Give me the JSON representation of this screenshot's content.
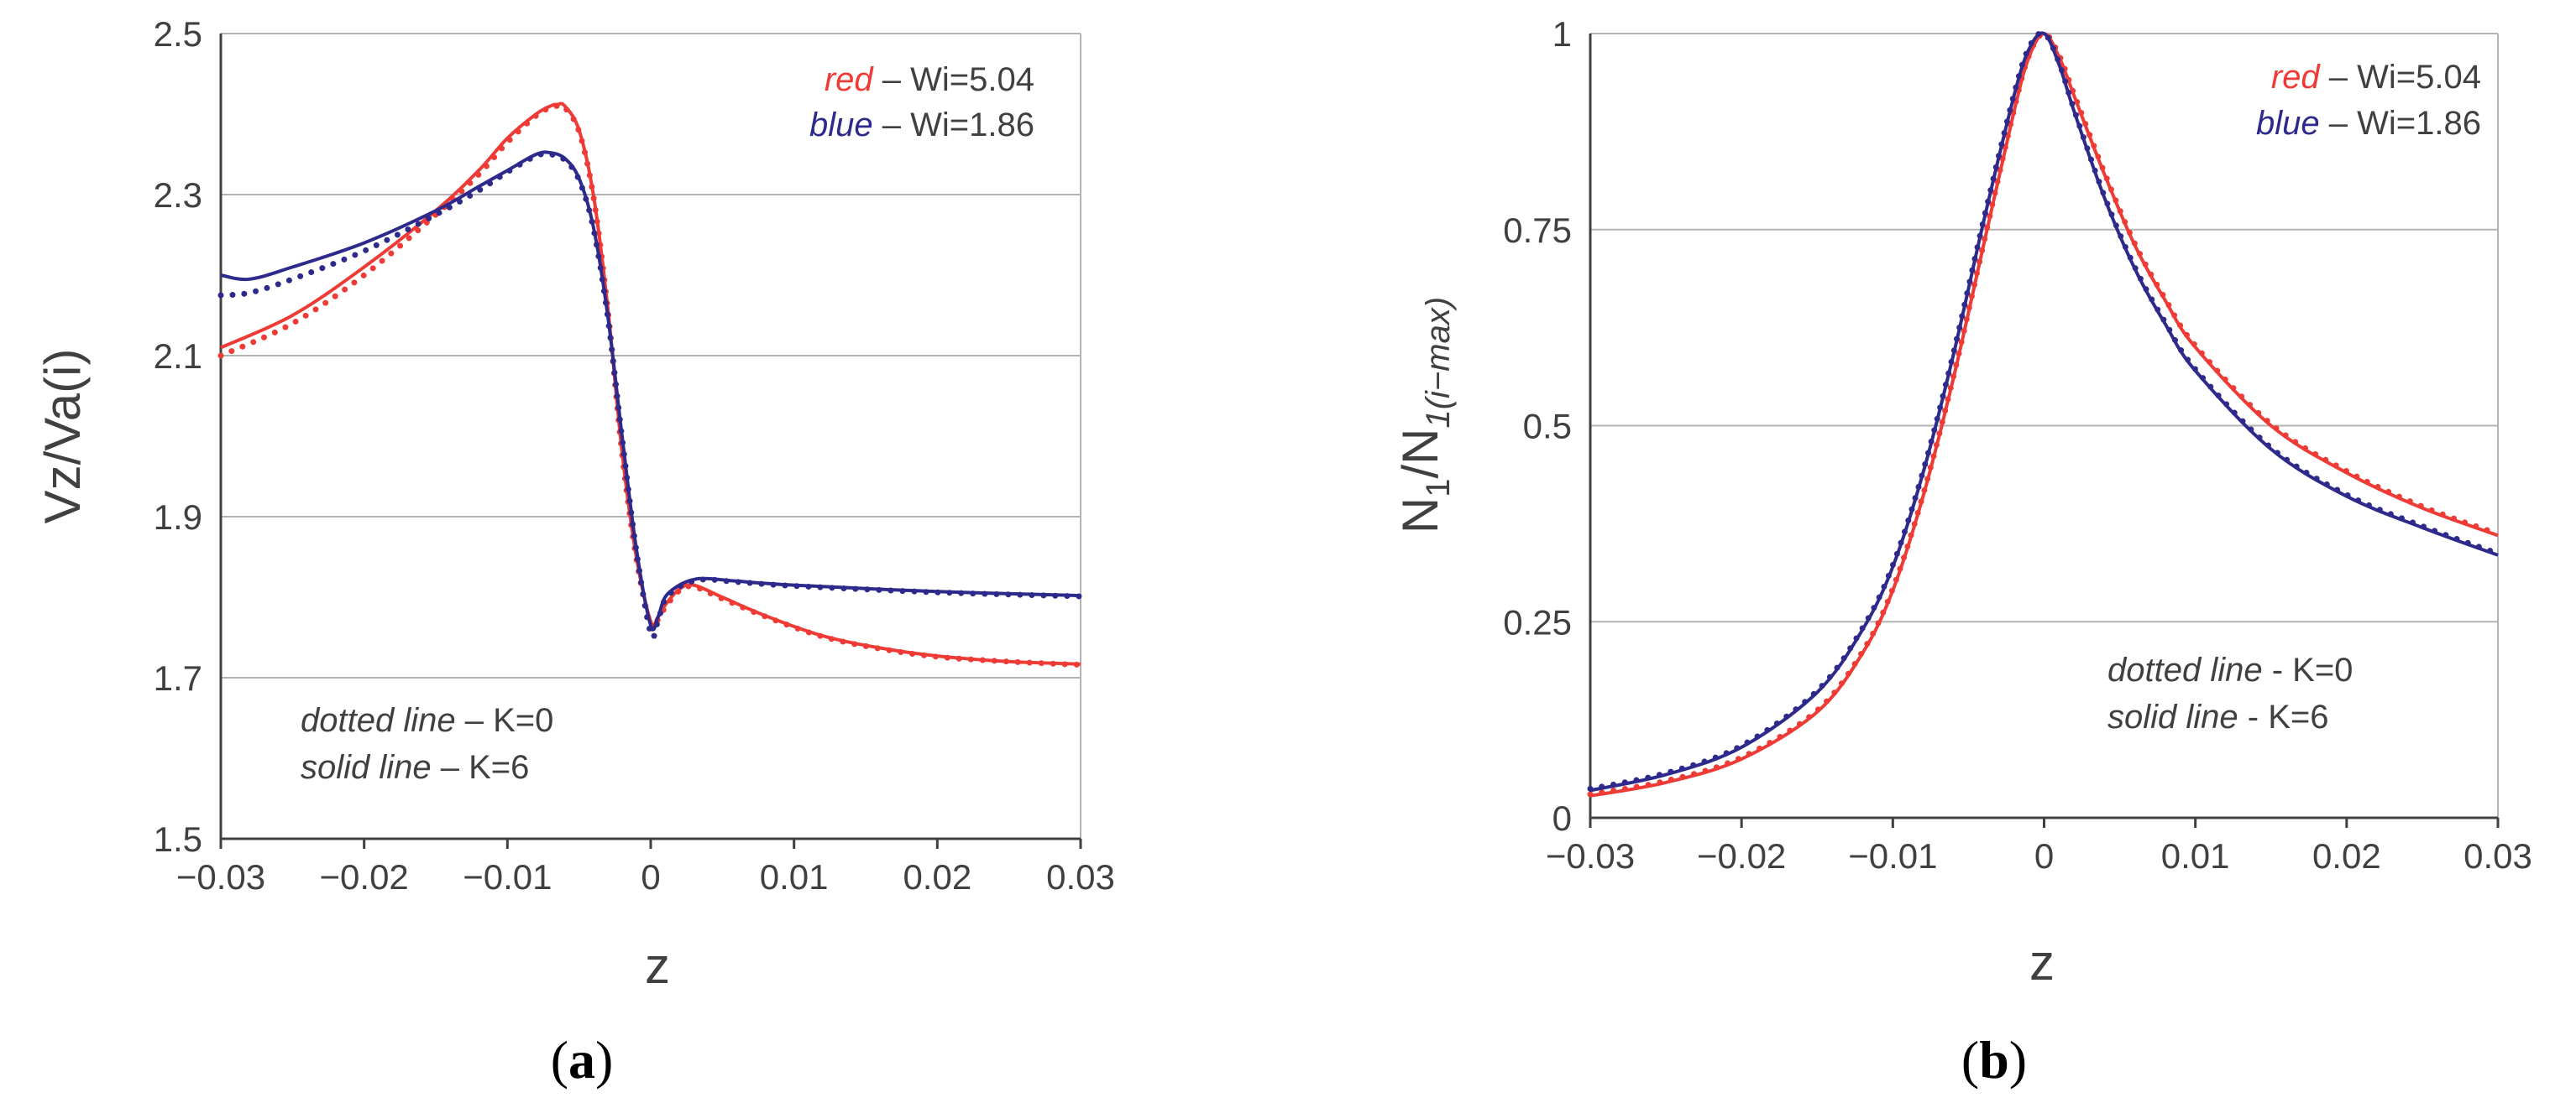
{
  "figure_labels": {
    "a_open": "(",
    "a": "a",
    "a_close": ")",
    "b_open": "(",
    "b": "b",
    "b_close": ")"
  },
  "annotations": {
    "red_word": "red",
    "red_text": " – Wi=5.04",
    "blue_word": "blue",
    "blue_text": " – Wi=1.86",
    "dotted_a_word": "dotted line",
    "dotted_a_text": " – K=0",
    "solid_a_word": "solid line",
    "solid_a_text": " – K=6",
    "dotted_b_word": "dotted line",
    "dotted_b_text": " - K=0",
    "solid_b_word": "solid line",
    "solid_b_text": " - K=6"
  },
  "colors": {
    "red": "#ef3b36",
    "blue": "#2e2a8c",
    "grid": "#b3b3b3",
    "axis": "#404040"
  },
  "chart_data": [
    {
      "id": "a",
      "type": "line",
      "title": "",
      "xlabel": "z",
      "ylabel": "Vz/Va(i)",
      "xlim": [
        -0.03,
        0.03
      ],
      "ylim": [
        1.5,
        2.5
      ],
      "xticks": [
        -0.03,
        -0.02,
        -0.01,
        0,
        0.01,
        0.02,
        0.03
      ],
      "xtick_labels": [
        "−0.03",
        "−0.02",
        "−0.01",
        "0",
        "0.01",
        "0.02",
        "0.03"
      ],
      "yticks": [
        1.5,
        1.7,
        1.9,
        2.1,
        2.3,
        2.5
      ],
      "ytick_labels": [
        "1.5",
        "1.7",
        "1.9",
        "2.1",
        "2.3",
        "2.5"
      ],
      "grid": "horizontal",
      "series": [
        {
          "name": "Wi=5.04, K=6",
          "color": "red",
          "style": "solid",
          "x": [
            -0.03,
            -0.025,
            -0.02,
            -0.015,
            -0.012,
            -0.01,
            -0.008,
            -0.007,
            -0.0065,
            -0.006,
            -0.005,
            -0.004,
            -0.003,
            -0.002,
            -0.001,
            0,
            0.0005,
            0.001,
            0.002,
            0.003,
            0.005,
            0.008,
            0.012,
            0.016,
            0.02,
            0.025,
            0.03
          ],
          "y": [
            2.11,
            2.15,
            2.21,
            2.28,
            2.33,
            2.37,
            2.4,
            2.41,
            2.412,
            2.41,
            2.38,
            2.3,
            2.16,
            1.98,
            1.85,
            1.77,
            1.775,
            1.79,
            1.81,
            1.815,
            1.8,
            1.777,
            1.752,
            1.737,
            1.727,
            1.72,
            1.717
          ]
        },
        {
          "name": "Wi=5.04, K=0",
          "color": "red",
          "style": "dotted",
          "x": [
            -0.03,
            -0.025,
            -0.02,
            -0.015,
            -0.012,
            -0.01,
            -0.008,
            -0.007,
            -0.0065,
            -0.006,
            -0.005,
            -0.004,
            -0.003,
            -0.002,
            -0.001,
            0,
            0.0005,
            0.001,
            0.002,
            0.003,
            0.005,
            0.008,
            0.012,
            0.016,
            0.02,
            0.025,
            0.03
          ],
          "y": [
            2.1,
            2.14,
            2.2,
            2.275,
            2.325,
            2.365,
            2.398,
            2.408,
            2.41,
            2.408,
            2.378,
            2.298,
            2.158,
            1.978,
            1.848,
            1.765,
            1.772,
            1.787,
            1.808,
            1.813,
            1.798,
            1.776,
            1.751,
            1.736,
            1.726,
            1.72,
            1.716
          ]
        },
        {
          "name": "Wi=1.86, K=6",
          "color": "blue",
          "style": "solid",
          "x": [
            -0.03,
            -0.028,
            -0.025,
            -0.02,
            -0.015,
            -0.012,
            -0.01,
            -0.008,
            -0.007,
            -0.006,
            -0.005,
            -0.004,
            -0.003,
            -0.002,
            -0.001,
            0,
            0.0005,
            0.001,
            0.002,
            0.003,
            0.004,
            0.006,
            0.01,
            0.02,
            0.03
          ],
          "y": [
            2.2,
            2.195,
            2.21,
            2.24,
            2.28,
            2.31,
            2.33,
            2.35,
            2.352,
            2.345,
            2.32,
            2.26,
            2.15,
            2.0,
            1.86,
            1.765,
            1.775,
            1.8,
            1.815,
            1.822,
            1.823,
            1.82,
            1.815,
            1.807,
            1.802
          ]
        },
        {
          "name": "Wi=1.86, K=0",
          "color": "blue",
          "style": "dotted",
          "x": [
            -0.03,
            -0.028,
            -0.025,
            -0.02,
            -0.015,
            -0.012,
            -0.01,
            -0.008,
            -0.007,
            -0.006,
            -0.005,
            -0.004,
            -0.003,
            -0.002,
            -0.001,
            0,
            0.0005,
            0.001,
            0.002,
            0.003,
            0.004,
            0.006,
            0.01,
            0.02,
            0.03
          ],
          "y": [
            2.175,
            2.178,
            2.195,
            2.23,
            2.275,
            2.305,
            2.328,
            2.348,
            2.35,
            2.343,
            2.318,
            2.258,
            2.148,
            1.998,
            1.858,
            1.755,
            1.77,
            1.797,
            1.813,
            1.82,
            1.822,
            1.819,
            1.814,
            1.806,
            1.801
          ]
        }
      ]
    },
    {
      "id": "b",
      "type": "line",
      "title": "",
      "xlabel": "z",
      "ylabel_main": "N",
      "ylabel_sub1": "1",
      "ylabel_mid": "/N",
      "ylabel_sub2": "1(i−max)",
      "xlim": [
        -0.03,
        0.03
      ],
      "ylim": [
        0,
        1
      ],
      "xticks": [
        -0.03,
        -0.02,
        -0.01,
        0,
        0.01,
        0.02,
        0.03
      ],
      "xtick_labels": [
        "−0.03",
        "−0.02",
        "−0.01",
        "0",
        "0.01",
        "0.02",
        "0.03"
      ],
      "yticks": [
        0,
        0.25,
        0.5,
        0.75,
        1
      ],
      "ytick_labels": [
        "0",
        "0.25",
        "0.5",
        "0.75",
        "1"
      ],
      "grid": "horizontal",
      "series": [
        {
          "name": "Wi=5.04, K=6",
          "color": "red",
          "style": "solid",
          "x": [
            -0.03,
            -0.025,
            -0.02,
            -0.015,
            -0.012,
            -0.01,
            -0.008,
            -0.006,
            -0.004,
            -0.002,
            -0.001,
            0,
            0.001,
            0.002,
            0.004,
            0.006,
            0.008,
            0.01,
            0.015,
            0.02,
            0.025,
            0.03
          ],
          "y": [
            0.028,
            0.045,
            0.075,
            0.135,
            0.21,
            0.29,
            0.41,
            0.56,
            0.73,
            0.9,
            0.97,
            1.0,
            0.97,
            0.92,
            0.82,
            0.73,
            0.66,
            0.6,
            0.5,
            0.44,
            0.395,
            0.36
          ]
        },
        {
          "name": "Wi=5.04, K=0",
          "color": "red",
          "style": "dotted",
          "x": [
            -0.03,
            -0.025,
            -0.02,
            -0.015,
            -0.012,
            -0.01,
            -0.008,
            -0.006,
            -0.004,
            -0.002,
            -0.001,
            0,
            0.001,
            0.002,
            0.004,
            0.006,
            0.008,
            0.01,
            0.015,
            0.02,
            0.025,
            0.03
          ],
          "y": [
            0.03,
            0.047,
            0.077,
            0.137,
            0.212,
            0.292,
            0.412,
            0.562,
            0.732,
            0.902,
            0.972,
            1.0,
            0.972,
            0.922,
            0.822,
            0.732,
            0.662,
            0.602,
            0.502,
            0.442,
            0.397,
            0.362
          ]
        },
        {
          "name": "Wi=1.86, K=6",
          "color": "blue",
          "style": "solid",
          "x": [
            -0.03,
            -0.025,
            -0.02,
            -0.015,
            -0.012,
            -0.01,
            -0.008,
            -0.006,
            -0.004,
            -0.002,
            -0.001,
            0,
            0.001,
            0.002,
            0.004,
            0.006,
            0.008,
            0.01,
            0.015,
            0.02,
            0.025,
            0.03
          ],
          "y": [
            0.035,
            0.055,
            0.09,
            0.16,
            0.24,
            0.32,
            0.44,
            0.59,
            0.76,
            0.92,
            0.98,
            1.0,
            0.96,
            0.9,
            0.79,
            0.7,
            0.63,
            0.57,
            0.47,
            0.41,
            0.37,
            0.335
          ]
        },
        {
          "name": "Wi=1.86, K=0",
          "color": "blue",
          "style": "dotted",
          "x": [
            -0.03,
            -0.025,
            -0.02,
            -0.015,
            -0.012,
            -0.01,
            -0.008,
            -0.006,
            -0.004,
            -0.002,
            -0.001,
            0,
            0.001,
            0.002,
            0.004,
            0.006,
            0.008,
            0.01,
            0.015,
            0.02,
            0.025,
            0.03
          ],
          "y": [
            0.037,
            0.057,
            0.092,
            0.162,
            0.242,
            0.322,
            0.442,
            0.592,
            0.762,
            0.922,
            0.982,
            1.0,
            0.962,
            0.902,
            0.792,
            0.702,
            0.632,
            0.572,
            0.472,
            0.412,
            0.372,
            0.337
          ]
        }
      ]
    }
  ]
}
